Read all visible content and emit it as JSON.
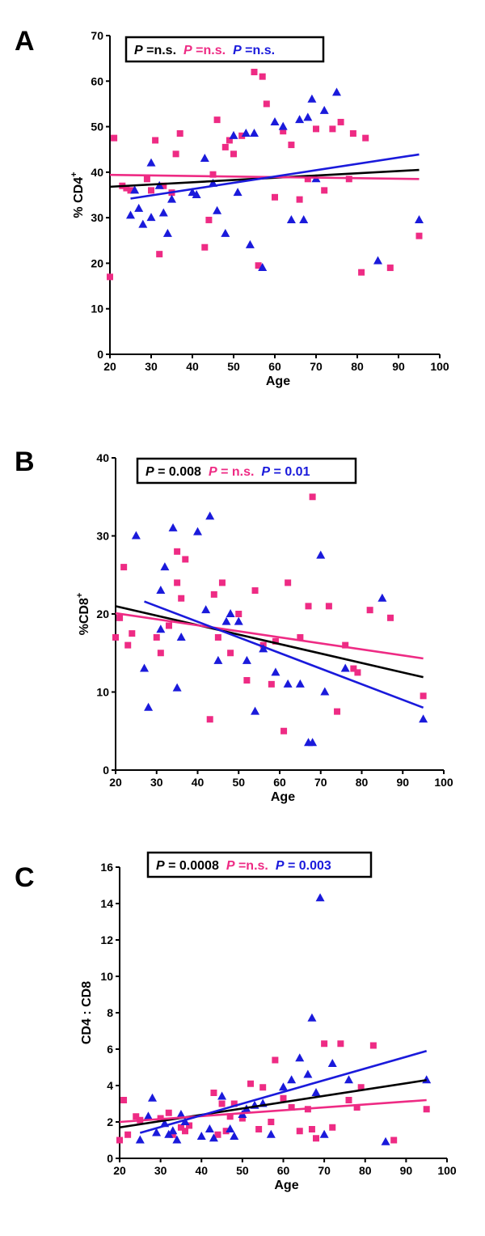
{
  "colors": {
    "black": "#000000",
    "pink": "#ee2b84",
    "blue": "#1a1adb"
  },
  "chart_data": [
    {
      "type": "scatter",
      "panel": "A",
      "xlabel": "Age",
      "ylabel": "% CD4",
      "ylabel_sup": "+",
      "xlim": [
        20,
        100
      ],
      "ylim": [
        0,
        70
      ],
      "xticks": [
        20,
        30,
        40,
        50,
        60,
        70,
        80,
        90,
        100
      ],
      "yticks": [
        0,
        10,
        20,
        30,
        40,
        50,
        60,
        70
      ],
      "legend": [
        {
          "label": "P",
          "value": " =n.s.",
          "color": "black"
        },
        {
          "label": "P",
          "value": " =n.s.",
          "color": "pink"
        },
        {
          "label": "P",
          "value": " =n.s.",
          "color": "blue"
        }
      ],
      "fits": [
        {
          "color": "black",
          "x": [
            20,
            95
          ],
          "y": [
            36.8,
            40.5
          ]
        },
        {
          "color": "pink",
          "x": [
            20,
            95
          ],
          "y": [
            39.4,
            38.5
          ]
        },
        {
          "color": "blue",
          "x": [
            25,
            95
          ],
          "y": [
            34.2,
            43.9
          ]
        }
      ],
      "series": [
        {
          "name": "pink",
          "marker": "square",
          "color": "pink",
          "x": [
            20,
            21,
            23,
            24,
            25,
            29,
            30,
            31,
            32,
            33,
            35,
            36,
            37,
            43,
            44,
            45,
            46,
            48,
            49,
            50,
            52,
            55,
            56,
            57,
            58,
            60,
            62,
            64,
            66,
            68,
            70,
            72,
            74,
            76,
            78,
            79,
            81,
            82,
            88,
            95
          ],
          "y": [
            17,
            47.5,
            37,
            36.5,
            36,
            38.5,
            36,
            47,
            22,
            37,
            35.5,
            44,
            48.5,
            23.5,
            29.5,
            39.5,
            51.5,
            45.5,
            47,
            44,
            48,
            62,
            19.5,
            61,
            55,
            34.5,
            49,
            46,
            34,
            38.5,
            49.5,
            36,
            49.5,
            51,
            38.5,
            48.5,
            18,
            47.5,
            19,
            26
          ]
        },
        {
          "name": "blue",
          "marker": "triangle",
          "color": "blue",
          "x": [
            25,
            26,
            27,
            28,
            30,
            30,
            32,
            33,
            34,
            35,
            40,
            41,
            43,
            45,
            46,
            48,
            50,
            51,
            53,
            54,
            55,
            57,
            60,
            62,
            64,
            66,
            67,
            68,
            69,
            70,
            72,
            75,
            85,
            95
          ],
          "y": [
            30.5,
            36,
            32,
            28.5,
            30,
            42,
            37,
            31,
            26.5,
            34,
            35.5,
            35,
            43,
            37.5,
            31.5,
            26.5,
            48,
            35.5,
            48.5,
            24,
            48.5,
            19,
            51,
            50,
            29.5,
            51.5,
            29.5,
            52,
            56,
            38.5,
            53.5,
            57.5,
            20.5,
            29.5
          ]
        }
      ]
    },
    {
      "type": "scatter",
      "panel": "B",
      "xlabel": "Age",
      "ylabel": "%CD8",
      "ylabel_sup": "+",
      "xlim": [
        20,
        100
      ],
      "ylim": [
        0,
        40
      ],
      "xticks": [
        20,
        30,
        40,
        50,
        60,
        70,
        80,
        90,
        100
      ],
      "yticks": [
        0,
        10,
        20,
        30,
        40
      ],
      "legend": [
        {
          "label": "P",
          "value": " = 0.008",
          "color": "black"
        },
        {
          "label": "P",
          "value": " = n.s.",
          "color": "pink"
        },
        {
          "label": "P",
          "value": " = 0.01",
          "color": "blue"
        }
      ],
      "fits": [
        {
          "color": "black",
          "x": [
            20,
            95
          ],
          "y": [
            21,
            11.9
          ]
        },
        {
          "color": "pink",
          "x": [
            20,
            95
          ],
          "y": [
            20.1,
            14.3
          ]
        },
        {
          "color": "blue",
          "x": [
            27,
            95
          ],
          "y": [
            21.6,
            8.0
          ]
        }
      ],
      "series": [
        {
          "name": "pink",
          "marker": "square",
          "color": "pink",
          "x": [
            20,
            21,
            22,
            23,
            24,
            30,
            31,
            33,
            35,
            35,
            36,
            37,
            43,
            44,
            45,
            46,
            48,
            50,
            52,
            54,
            56,
            58,
            59,
            61,
            62,
            65,
            67,
            68,
            72,
            74,
            76,
            78,
            79,
            82,
            87,
            95
          ],
          "y": [
            17,
            19.5,
            26,
            16,
            17.5,
            17,
            15,
            18.5,
            28,
            24,
            22,
            27,
            6.5,
            22.5,
            17,
            24,
            15,
            20,
            11.5,
            23,
            16,
            11,
            16.5,
            5,
            24,
            17,
            21,
            35,
            21,
            7.5,
            16,
            13,
            12.5,
            20.5,
            19.5,
            9.5
          ]
        },
        {
          "name": "blue",
          "marker": "triangle",
          "color": "blue",
          "x": [
            25,
            27,
            28,
            31,
            31,
            32,
            34,
            35,
            36,
            40,
            42,
            43,
            45,
            47,
            48,
            50,
            52,
            54,
            56,
            59,
            62,
            65,
            67,
            68,
            70,
            71,
            76,
            85,
            95
          ],
          "y": [
            30,
            13,
            8,
            23,
            18,
            26,
            31,
            10.5,
            17,
            30.5,
            20.5,
            32.5,
            14,
            19,
            20,
            19,
            14,
            7.5,
            15.5,
            12.5,
            11,
            11,
            3.5,
            3.5,
            27.5,
            10,
            13,
            22,
            6.5
          ]
        }
      ]
    },
    {
      "type": "scatter",
      "panel": "C",
      "xlabel": "Age",
      "ylabel": "CD4 : CD8",
      "ylabel_sup": "",
      "xlim": [
        20,
        100
      ],
      "ylim": [
        0,
        16
      ],
      "xticks": [
        20,
        30,
        40,
        50,
        60,
        70,
        80,
        90,
        100
      ],
      "yticks": [
        0,
        2,
        4,
        6,
        8,
        10,
        12,
        14,
        16
      ],
      "legend": [
        {
          "label": "P",
          "value": " = 0.0008",
          "color": "black"
        },
        {
          "label": "P",
          "value": " =n.s.",
          "color": "pink"
        },
        {
          "label": "P",
          "value": " = 0.003",
          "color": "blue"
        }
      ],
      "fits": [
        {
          "color": "black",
          "x": [
            20,
            95
          ],
          "y": [
            1.7,
            4.3
          ]
        },
        {
          "color": "pink",
          "x": [
            20,
            95
          ],
          "y": [
            2.0,
            3.2
          ]
        },
        {
          "color": "blue",
          "x": [
            25,
            95
          ],
          "y": [
            1.4,
            5.9
          ]
        }
      ],
      "series": [
        {
          "name": "pink",
          "marker": "square",
          "color": "pink",
          "x": [
            20,
            21,
            22,
            24,
            25,
            30,
            32,
            33,
            35,
            36,
            37,
            43,
            44,
            45,
            46,
            47,
            48,
            50,
            52,
            54,
            55,
            57,
            58,
            60,
            62,
            64,
            66,
            67,
            68,
            70,
            72,
            74,
            76,
            78,
            79,
            82,
            87,
            95
          ],
          "y": [
            1,
            3.2,
            1.3,
            2.3,
            2.1,
            2.2,
            2.5,
            1.3,
            1.7,
            1.5,
            1.8,
            3.6,
            1.3,
            3.0,
            1.5,
            2.3,
            3.0,
            2.2,
            4.1,
            1.6,
            3.9,
            2.0,
            5.4,
            3.3,
            2.8,
            1.5,
            2.7,
            1.6,
            1.1,
            6.3,
            1.7,
            6.3,
            3.2,
            2.8,
            3.9,
            6.2,
            1.0,
            2.7
          ]
        },
        {
          "name": "blue",
          "marker": "triangle",
          "color": "blue",
          "x": [
            25,
            27,
            28,
            29,
            31,
            32,
            33,
            34,
            35,
            36,
            40,
            42,
            43,
            45,
            47,
            48,
            50,
            51,
            53,
            55,
            57,
            60,
            62,
            64,
            66,
            67,
            68,
            69,
            70,
            72,
            76,
            85,
            95
          ],
          "y": [
            1.0,
            2.3,
            3.3,
            1.4,
            1.9,
            1.3,
            1.5,
            1.0,
            2.4,
            2.0,
            1.2,
            1.6,
            1.1,
            3.4,
            1.6,
            1.2,
            2.4,
            2.7,
            2.9,
            3.0,
            1.3,
            3.9,
            4.3,
            5.5,
            4.6,
            7.7,
            3.6,
            14.3,
            1.3,
            5.2,
            4.3,
            0.9,
            4.3
          ]
        }
      ]
    }
  ]
}
